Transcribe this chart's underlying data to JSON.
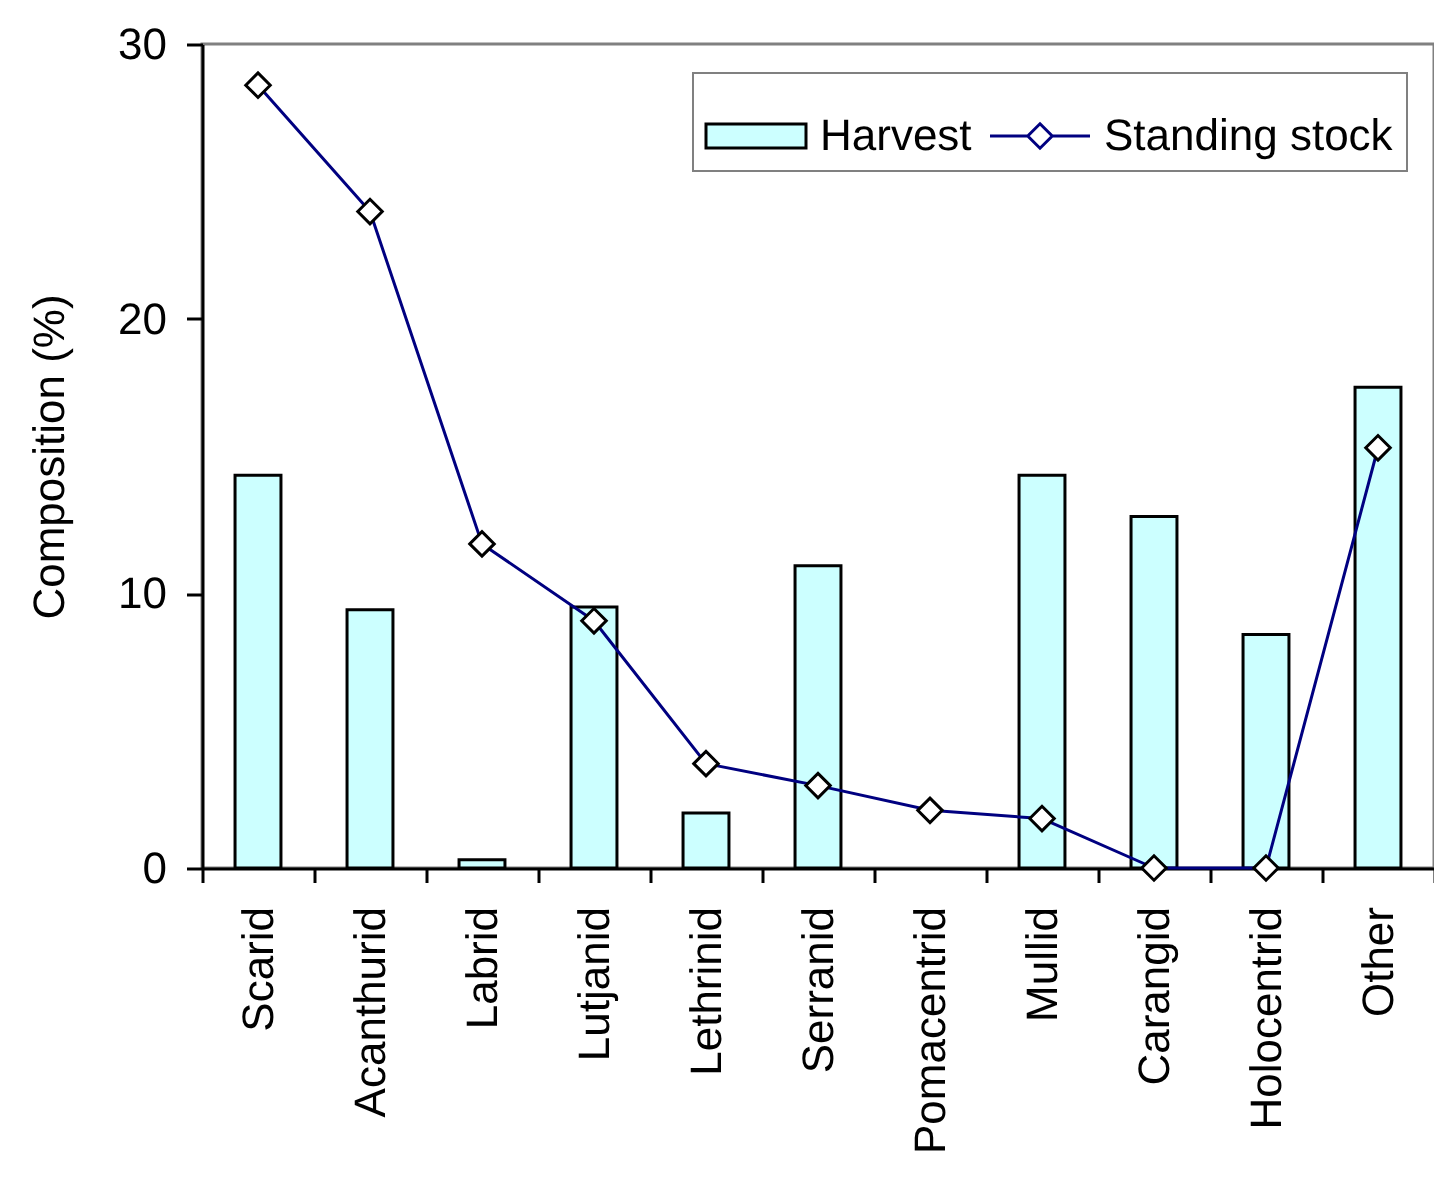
{
  "chart_data": {
    "type": "bar",
    "ylabel": "Composition (%)",
    "categories": [
      "Scarid",
      "Acanthurid",
      "Labrid",
      "Lutjanid",
      "Lethrinid",
      "Serranid",
      "Pomacentrid",
      "Mullid",
      "Carangid",
      "Holocentrid",
      "Other"
    ],
    "series": [
      {
        "name": "Harvest",
        "color": "#ccffff",
        "values": [
          14.3,
          9.4,
          0.3,
          9.5,
          2.0,
          11.0,
          null,
          14.3,
          12.8,
          8.5,
          17.5
        ]
      },
      {
        "name": "Standing stock",
        "type": "line",
        "color": "#000080",
        "values": [
          28.5,
          23.9,
          11.8,
          9.0,
          3.8,
          3.0,
          2.1,
          1.8,
          0,
          0,
          15.3
        ]
      }
    ],
    "ylim": [
      0,
      30
    ],
    "yticks": [
      0,
      10,
      20,
      30
    ],
    "legend": "top right",
    "marker": "diamond"
  }
}
